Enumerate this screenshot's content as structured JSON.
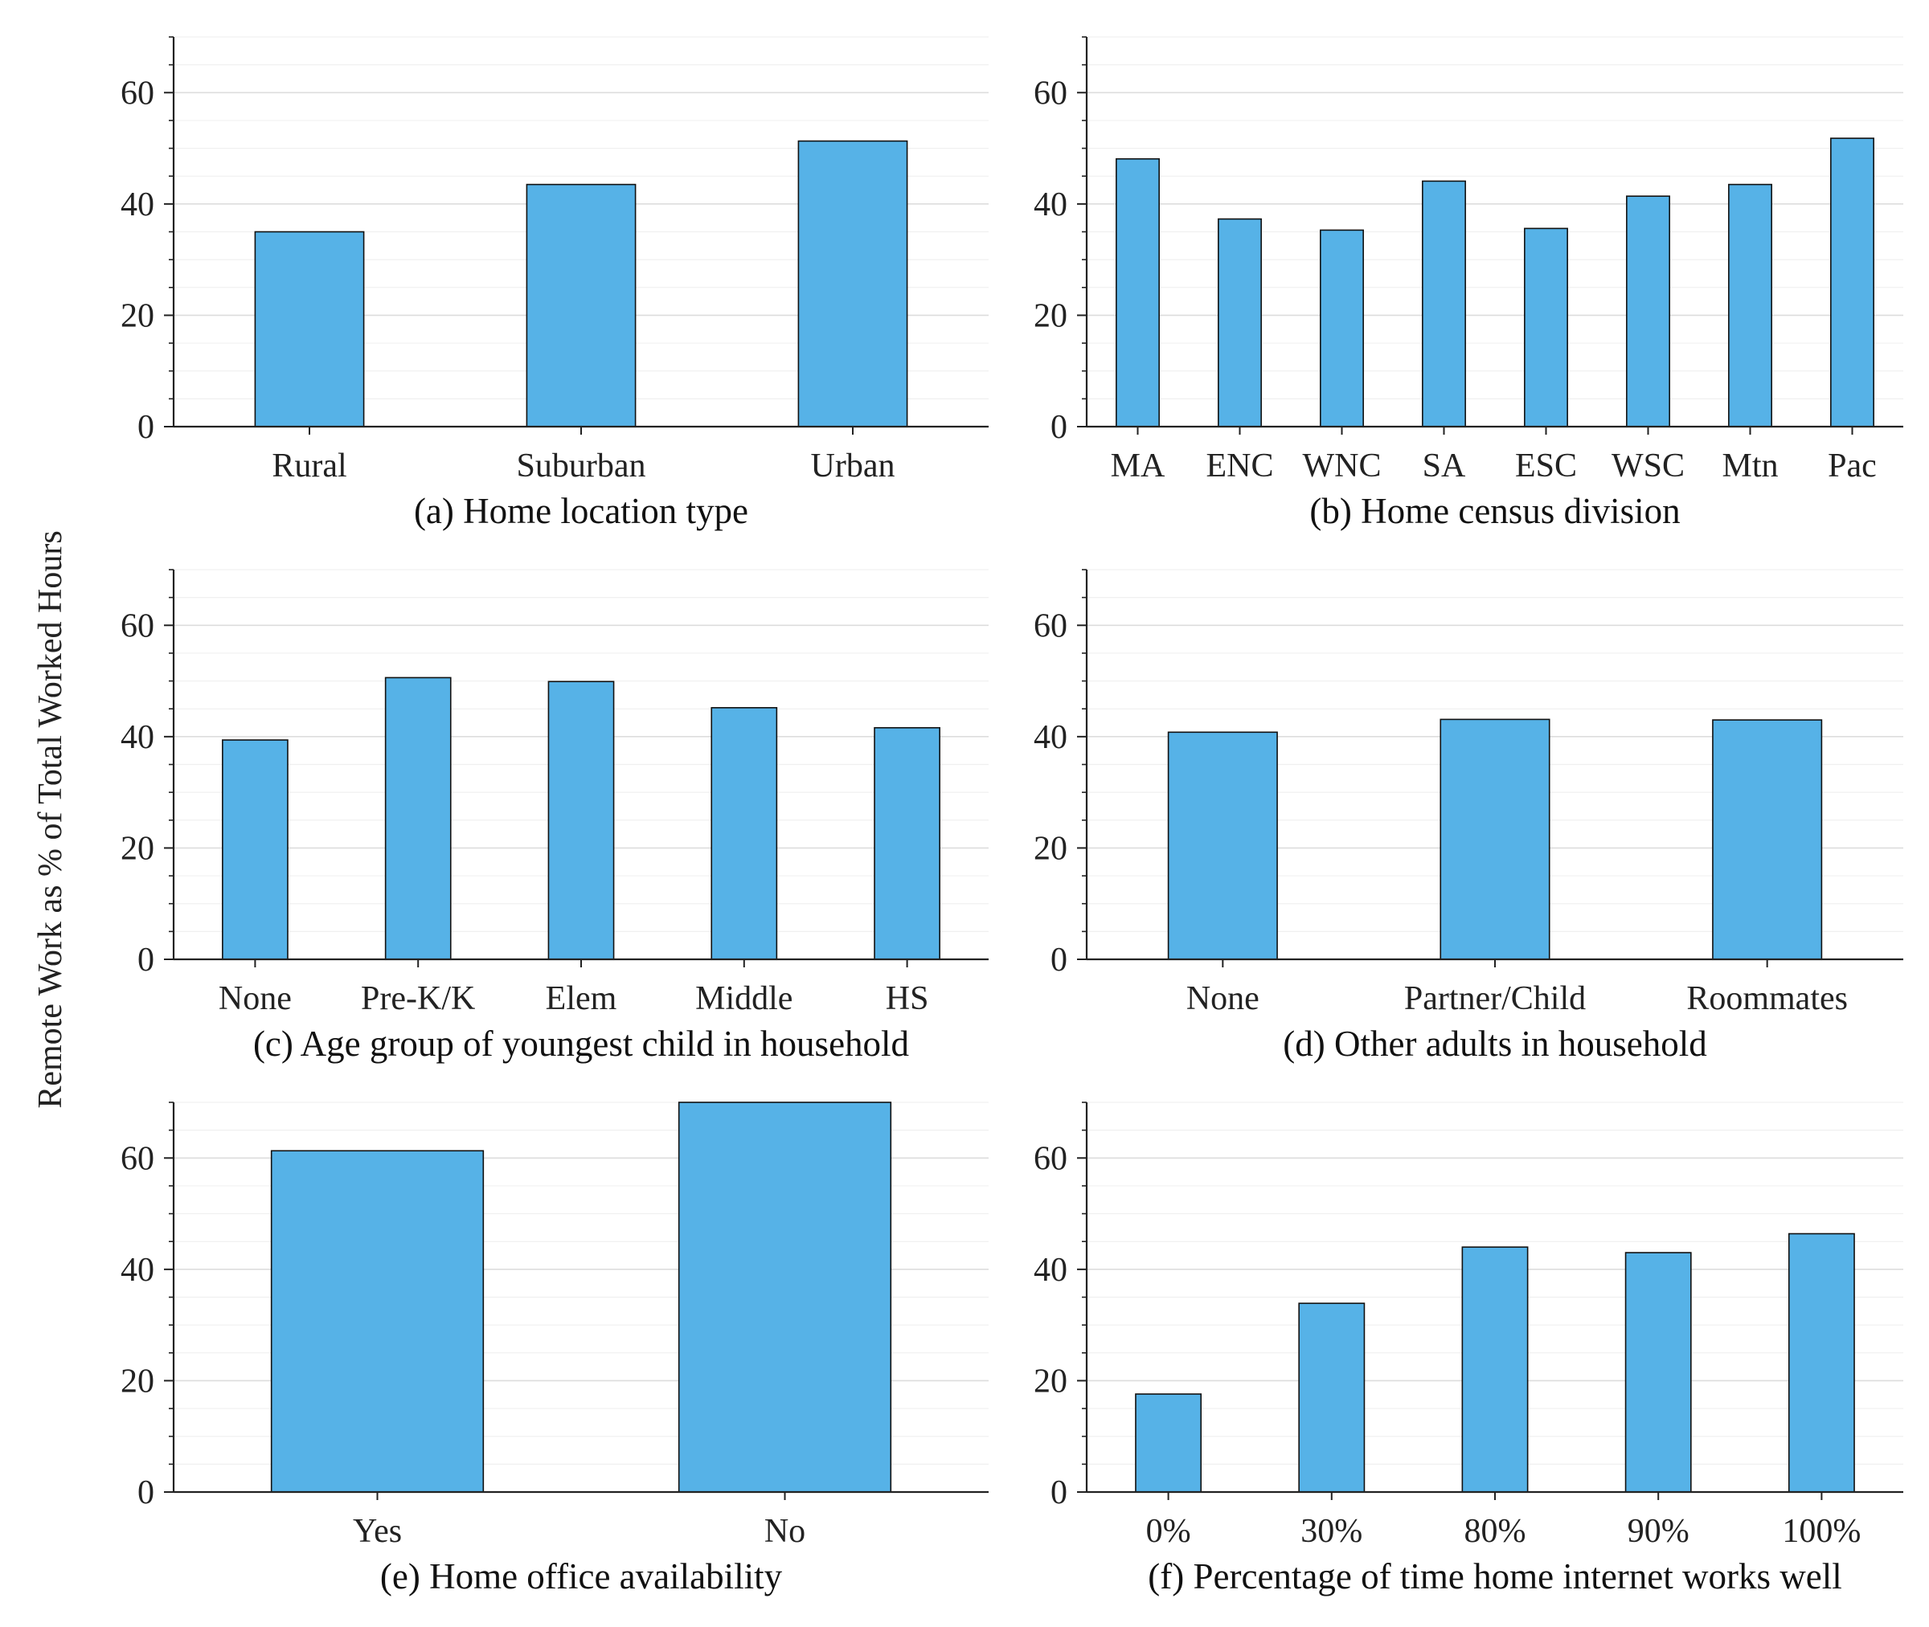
{
  "figure": {
    "ylabel": "Remote Work as % of Total Worked Hours",
    "colors": {
      "bar": "#56b2e7",
      "bar_edge": "#111111",
      "axis": "#222222",
      "grid_major": "#dddddd",
      "grid_minor": "#f0f0f0"
    }
  },
  "chart_data": [
    {
      "type": "bar",
      "title": "(a) Home location type",
      "xlabel": "",
      "ylabel": "Remote Work as % of Total Worked Hours",
      "categories": [
        "Rural",
        "Suburban",
        "Urban"
      ],
      "values": [
        35.0,
        43.5,
        51.3
      ],
      "ylim": [
        0,
        70
      ],
      "yticks": [
        0,
        20,
        40,
        60
      ],
      "grid": true
    },
    {
      "type": "bar",
      "title": "(b) Home census division",
      "xlabel": "",
      "ylabel": "Remote Work as % of Total Worked Hours",
      "categories": [
        "MA",
        "ENC",
        "WNC",
        "SA",
        "ESC",
        "WSC",
        "Mtn",
        "Pac"
      ],
      "values": [
        48.1,
        37.3,
        35.3,
        44.1,
        35.6,
        41.4,
        43.5,
        51.8
      ],
      "ylim": [
        0,
        70
      ],
      "yticks": [
        0,
        20,
        40,
        60
      ],
      "grid": true
    },
    {
      "type": "bar",
      "title": "(c) Age group of youngest child in household",
      "xlabel": "",
      "ylabel": "Remote Work as % of Total Worked Hours",
      "categories": [
        "None",
        "Pre-K/K",
        "Elem",
        "Middle",
        "HS"
      ],
      "values": [
        39.4,
        50.6,
        49.9,
        45.2,
        41.6
      ],
      "ylim": [
        0,
        70
      ],
      "yticks": [
        0,
        20,
        40,
        60
      ],
      "grid": true
    },
    {
      "type": "bar",
      "title": "(d) Other adults in household",
      "xlabel": "",
      "ylabel": "Remote Work as % of Total Worked Hours",
      "categories": [
        "None",
        "Partner/Child",
        "Roommates"
      ],
      "values": [
        40.8,
        43.1,
        43.0
      ],
      "ylim": [
        0,
        70
      ],
      "yticks": [
        0,
        20,
        40,
        60
      ],
      "grid": true
    },
    {
      "type": "bar",
      "title": "(e) Home office availability",
      "xlabel": "",
      "ylabel": "Remote Work as % of Total Worked Hours",
      "categories": [
        "Yes",
        "No"
      ],
      "values": [
        61.3,
        70.0
      ],
      "ylim": [
        0,
        70
      ],
      "yticks": [
        0,
        20,
        40,
        60
      ],
      "grid": true
    },
    {
      "type": "bar",
      "title": "(f) Percentage of time home internet works well",
      "xlabel": "",
      "ylabel": "Remote Work as % of Total Worked Hours",
      "categories": [
        "0%",
        "30%",
        "80%",
        "90%",
        "100%"
      ],
      "values": [
        17.6,
        33.9,
        44.0,
        43.0,
        46.4
      ],
      "ylim": [
        0,
        70
      ],
      "yticks": [
        0,
        20,
        40,
        60
      ],
      "grid": true
    }
  ]
}
